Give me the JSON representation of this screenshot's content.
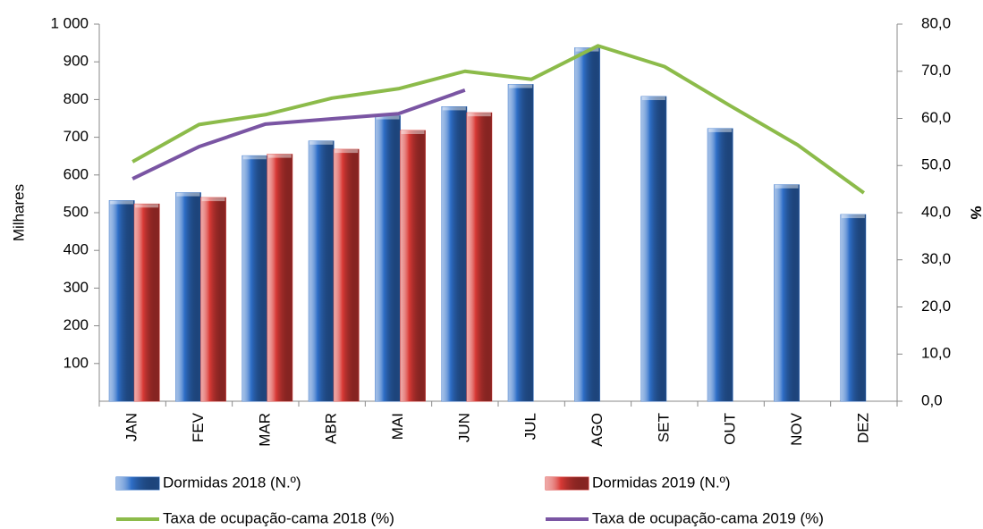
{
  "chart_data": {
    "type": "bar-line",
    "categories": [
      "JAN",
      "FEV",
      "MAR",
      "ABR",
      "MAI",
      "JUN",
      "JUL",
      "AGO",
      "SET",
      "OUT",
      "NOV",
      "DEZ"
    ],
    "series": [
      {
        "name": "Dormidas 2018 (N.º)",
        "color": "#2f6fc8",
        "values": [
          532,
          553,
          651,
          690,
          757,
          781,
          840,
          937,
          808,
          723,
          574,
          495
        ]
      },
      {
        "name": "Dormidas 2019 (N.º)",
        "color": "#d93a36",
        "values": [
          523,
          540,
          655,
          668,
          718,
          765,
          null,
          null,
          null,
          null,
          null,
          null
        ]
      },
      {
        "name": "Taxa de ocupação-cama 2018 (%)",
        "color": "#8cbb4a",
        "axis": "y2",
        "values": [
          50.8,
          58.7,
          60.8,
          64.3,
          66.3,
          70.0,
          68.3,
          75.4,
          71.0,
          62.6,
          54.4,
          44.2
        ]
      },
      {
        "name": "Taxa de ocupação-cama 2019 (%)",
        "color": "#7a55a3",
        "axis": "y2",
        "values": [
          47.2,
          54.0,
          58.8,
          59.9,
          61.0,
          66.0,
          null,
          null,
          null,
          null,
          null,
          null
        ]
      }
    ],
    "ylabel": "Milhares",
    "y2label": "%",
    "ylim": [
      0,
      1000
    ],
    "yticks": [
      100,
      200,
      300,
      400,
      500,
      600,
      700,
      800,
      900,
      {
        "value": 1000,
        "label": "1 000"
      }
    ],
    "y2lim": [
      0,
      80
    ],
    "y2ticks": [
      {
        "value": 0,
        "label": "0,0"
      },
      {
        "value": 10,
        "label": "10,0"
      },
      {
        "value": 20,
        "label": "20,0"
      },
      {
        "value": 30,
        "label": "30,0"
      },
      {
        "value": 40,
        "label": "40,0"
      },
      {
        "value": 50,
        "label": "50,0"
      },
      {
        "value": 60,
        "label": "60,0"
      },
      {
        "value": 70,
        "label": "70,0"
      },
      {
        "value": 80,
        "label": "80,0"
      }
    ],
    "legend": "bottom"
  }
}
